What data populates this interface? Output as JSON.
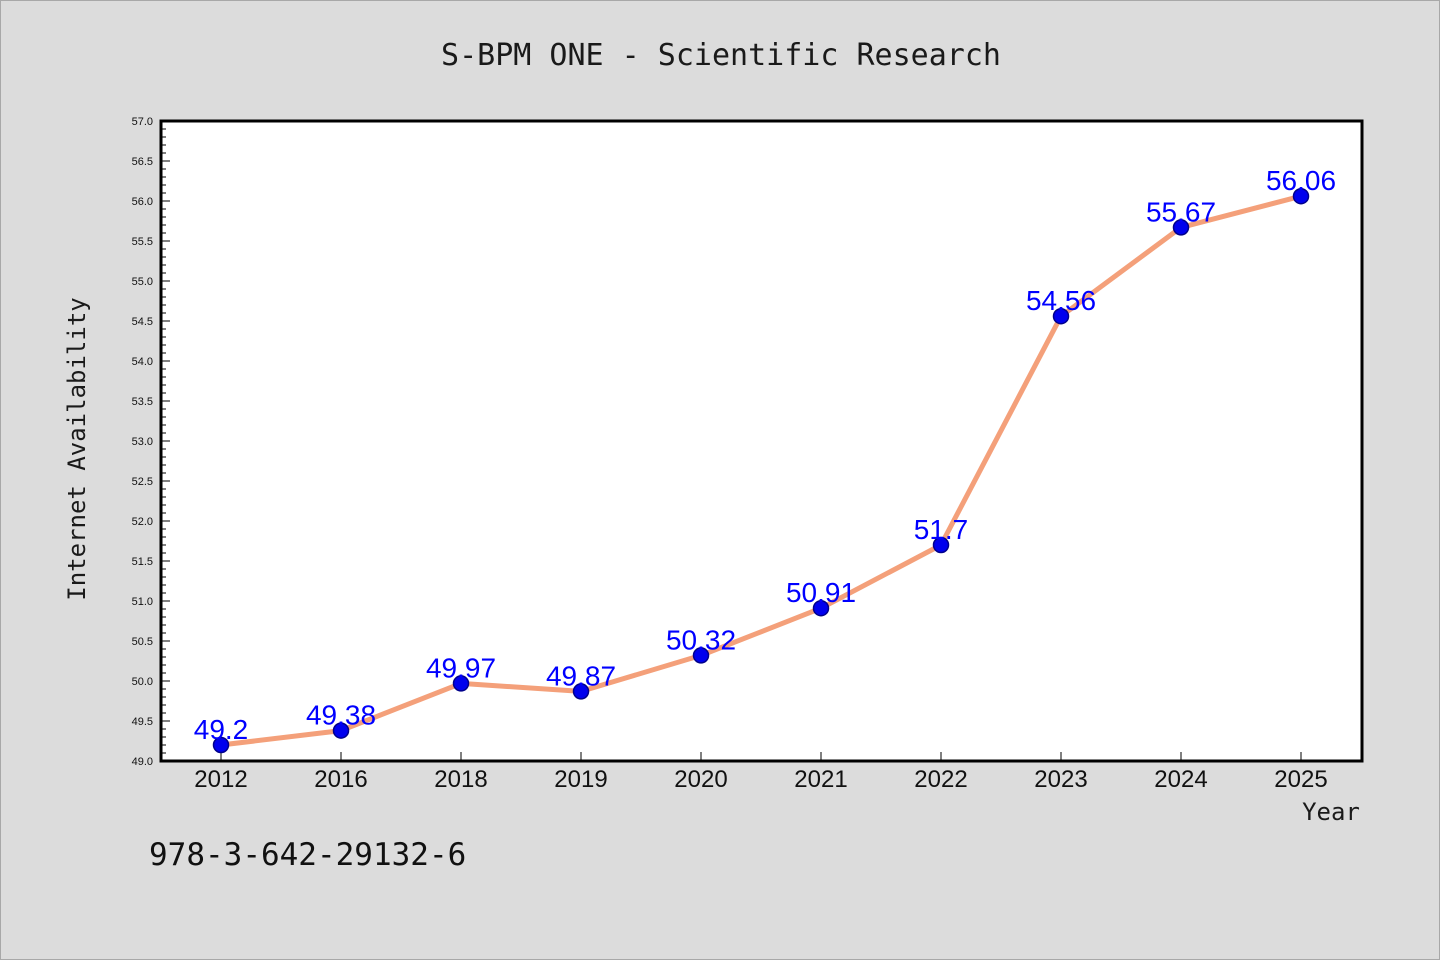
{
  "chart_data": {
    "type": "line",
    "title": "S-BPM ONE - Scientific Research",
    "xlabel": "Year",
    "ylabel": "Internet Availability",
    "categories": [
      "2012",
      "2016",
      "2018",
      "2019",
      "2020",
      "2021",
      "2022",
      "2023",
      "2024",
      "2025"
    ],
    "series": [
      {
        "values": [
          49.2,
          49.38,
          49.97,
          49.87,
          50.32,
          50.91,
          51.7,
          54.56,
          55.67,
          56.06
        ],
        "labels": [
          "49.2",
          "49.38",
          "49.97",
          "49.87",
          "50.32",
          "50.91",
          "51.7",
          "54.56",
          "55.67",
          "56.06"
        ]
      }
    ],
    "ylim": [
      49.0,
      57.0
    ],
    "yticks": [
      "49.0",
      "49.5",
      "50.0",
      "50.5",
      "51.0",
      "51.5",
      "52.0",
      "52.5",
      "53.0",
      "53.5",
      "54.0",
      "54.5",
      "55.0",
      "55.5",
      "56.0",
      "56.5",
      "57.0"
    ],
    "grid": false,
    "legend": "none",
    "colors": {
      "line": "#f4a07a",
      "marker": "#0000ee",
      "data_label": "#0000ff",
      "plot_background": "#ffffff",
      "figure_background": "#dcdcdc"
    }
  },
  "footnote": "978-3-642-29132-6"
}
